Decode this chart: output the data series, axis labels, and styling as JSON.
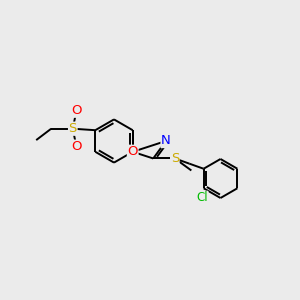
{
  "background_color": "#ebebeb",
  "bond_color": "#000000",
  "atom_colors": {
    "O": "#ff0000",
    "N": "#0000ff",
    "S": "#ccaa00",
    "Cl": "#00bb00",
    "C": "#000000"
  },
  "font_size": 8.5,
  "line_width": 1.4,
  "figsize": [
    3.0,
    3.0
  ],
  "dpi": 100
}
